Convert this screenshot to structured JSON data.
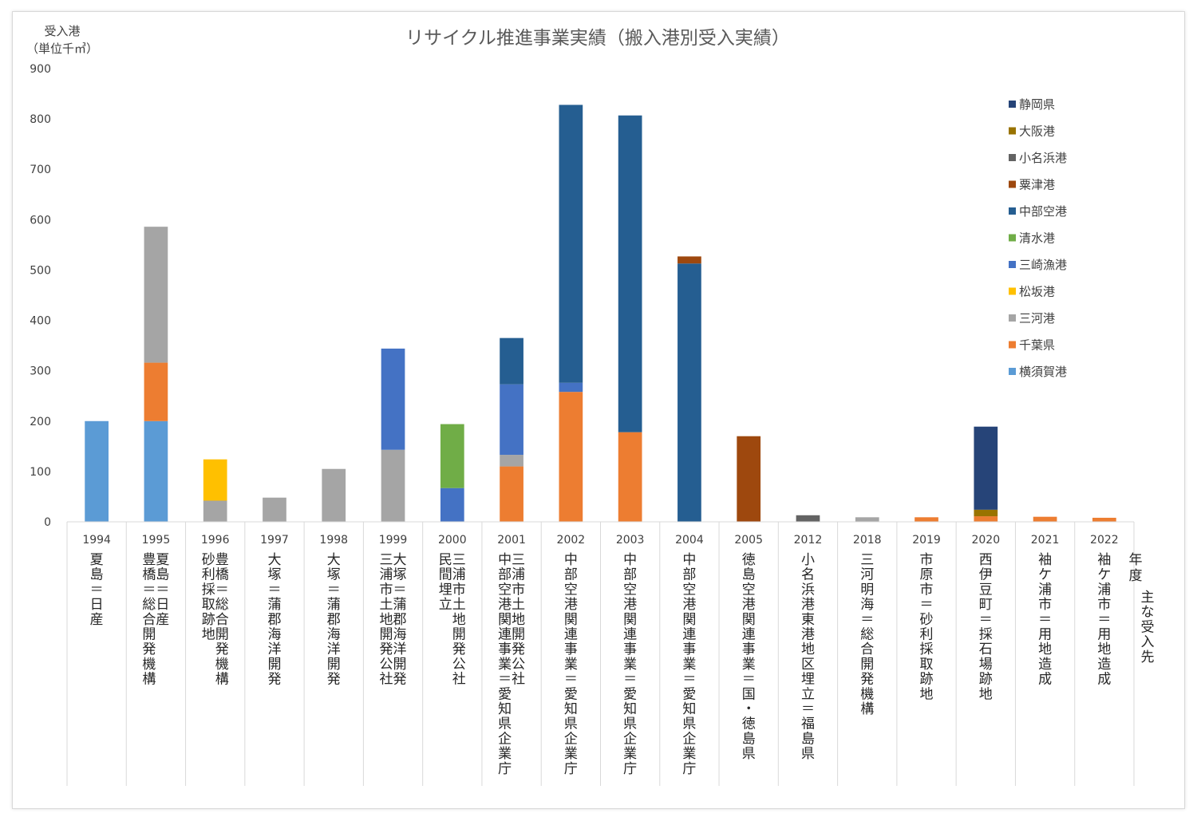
{
  "chart_data": {
    "type": "bar",
    "stacked": true,
    "title": "リサイクル推進事業実績（搬入港別受入実績）",
    "ylabel_line1": "受入港",
    "ylabel_line2": "（単位千㎥）",
    "ylim": [
      0,
      900
    ],
    "yticks": [
      0,
      100,
      200,
      300,
      400,
      500,
      600,
      700,
      800,
      900
    ],
    "grid": false,
    "legend_position": "right",
    "xaxis_caption_line1": "年",
    "xaxis_caption_line2": "度",
    "xaxis_caption_line3": "主な受入先",
    "categories": [
      "1994",
      "1995",
      "1996",
      "1997",
      "1998",
      "1999",
      "2000",
      "2001",
      "2002",
      "2003",
      "2004",
      "2005",
      "2012",
      "2018",
      "2019",
      "2020",
      "2021",
      "2022"
    ],
    "category_labels": [
      [
        "夏島＝日産"
      ],
      [
        "夏島＝日産",
        "豊橋＝総合開発機構"
      ],
      [
        "豊橋＝総合開発機構",
        "砂利採取跡地"
      ],
      [
        "大塚＝蒲郡海洋開発"
      ],
      [
        "大塚＝蒲郡海洋開発"
      ],
      [
        "大塚＝蒲郡海洋開発",
        "三浦市土地開発公社"
      ],
      [
        "三浦市土地開発公社",
        "民間埋立"
      ],
      [
        "三浦市土地開発公社",
        "中部空港関連事業＝愛知県企業庁"
      ],
      [
        "中部空港関連事業＝愛知県企業庁"
      ],
      [
        "中部空港関連事業＝愛知県企業庁"
      ],
      [
        "中部空港関連事業＝愛知県企業庁"
      ],
      [
        "徳島空港関連事業＝国・徳島県"
      ],
      [
        "小名浜港東港地区埋立＝福島県"
      ],
      [
        "三河明海＝総合開発機構"
      ],
      [
        "市原市＝砂利採取跡地"
      ],
      [
        "西伊豆町＝採石場跡地"
      ],
      [
        "袖ケ浦市＝用地造成"
      ],
      [
        "袖ケ浦市＝用地造成"
      ]
    ],
    "series": [
      {
        "name": "横須賀港",
        "color": "#5b9bd5",
        "values": [
          200,
          200,
          0,
          0,
          0,
          0,
          0,
          0,
          0,
          0,
          0,
          0,
          0,
          0,
          0,
          0,
          0,
          0
        ]
      },
      {
        "name": "千葉県",
        "color": "#ed7d31",
        "values": [
          0,
          116,
          0,
          0,
          0,
          0,
          0,
          110,
          258,
          178,
          0,
          0,
          0,
          0,
          9,
          11,
          10,
          8
        ]
      },
      {
        "name": "三河港",
        "color": "#a5a5a5",
        "values": [
          0,
          270,
          42,
          48,
          105,
          143,
          0,
          23,
          0,
          0,
          0,
          0,
          0,
          9,
          0,
          0,
          0,
          0
        ]
      },
      {
        "name": "松坂港",
        "color": "#ffc000",
        "values": [
          0,
          0,
          82,
          0,
          0,
          0,
          0,
          0,
          0,
          0,
          0,
          0,
          0,
          0,
          0,
          0,
          0,
          0
        ]
      },
      {
        "name": "三崎漁港",
        "color": "#4472c4",
        "values": [
          0,
          0,
          0,
          0,
          0,
          201,
          67,
          140,
          18,
          0,
          0,
          0,
          0,
          0,
          0,
          0,
          0,
          0
        ]
      },
      {
        "name": "清水港",
        "color": "#70ad47",
        "values": [
          0,
          0,
          0,
          0,
          0,
          0,
          127,
          0,
          0,
          0,
          0,
          0,
          0,
          0,
          0,
          0,
          0,
          0
        ]
      },
      {
        "name": "中部空港",
        "color": "#255e91",
        "values": [
          0,
          0,
          0,
          0,
          0,
          0,
          0,
          92,
          552,
          629,
          513,
          0,
          0,
          0,
          0,
          0,
          0,
          0
        ]
      },
      {
        "name": "粟津港",
        "color": "#9e480e",
        "values": [
          0,
          0,
          0,
          0,
          0,
          0,
          0,
          0,
          0,
          0,
          14,
          170,
          0,
          0,
          0,
          0,
          0,
          0
        ]
      },
      {
        "name": "小名浜港",
        "color": "#636363",
        "values": [
          0,
          0,
          0,
          0,
          0,
          0,
          0,
          0,
          0,
          0,
          0,
          0,
          13,
          0,
          0,
          0,
          0,
          0
        ]
      },
      {
        "name": "大阪港",
        "color": "#997300",
        "values": [
          0,
          0,
          0,
          0,
          0,
          0,
          0,
          0,
          0,
          0,
          0,
          0,
          0,
          0,
          0,
          13,
          0,
          0
        ]
      },
      {
        "name": "静岡県",
        "color": "#264478",
        "values": [
          0,
          0,
          0,
          0,
          0,
          0,
          0,
          0,
          0,
          0,
          0,
          0,
          0,
          0,
          0,
          165,
          0,
          0
        ]
      }
    ]
  }
}
